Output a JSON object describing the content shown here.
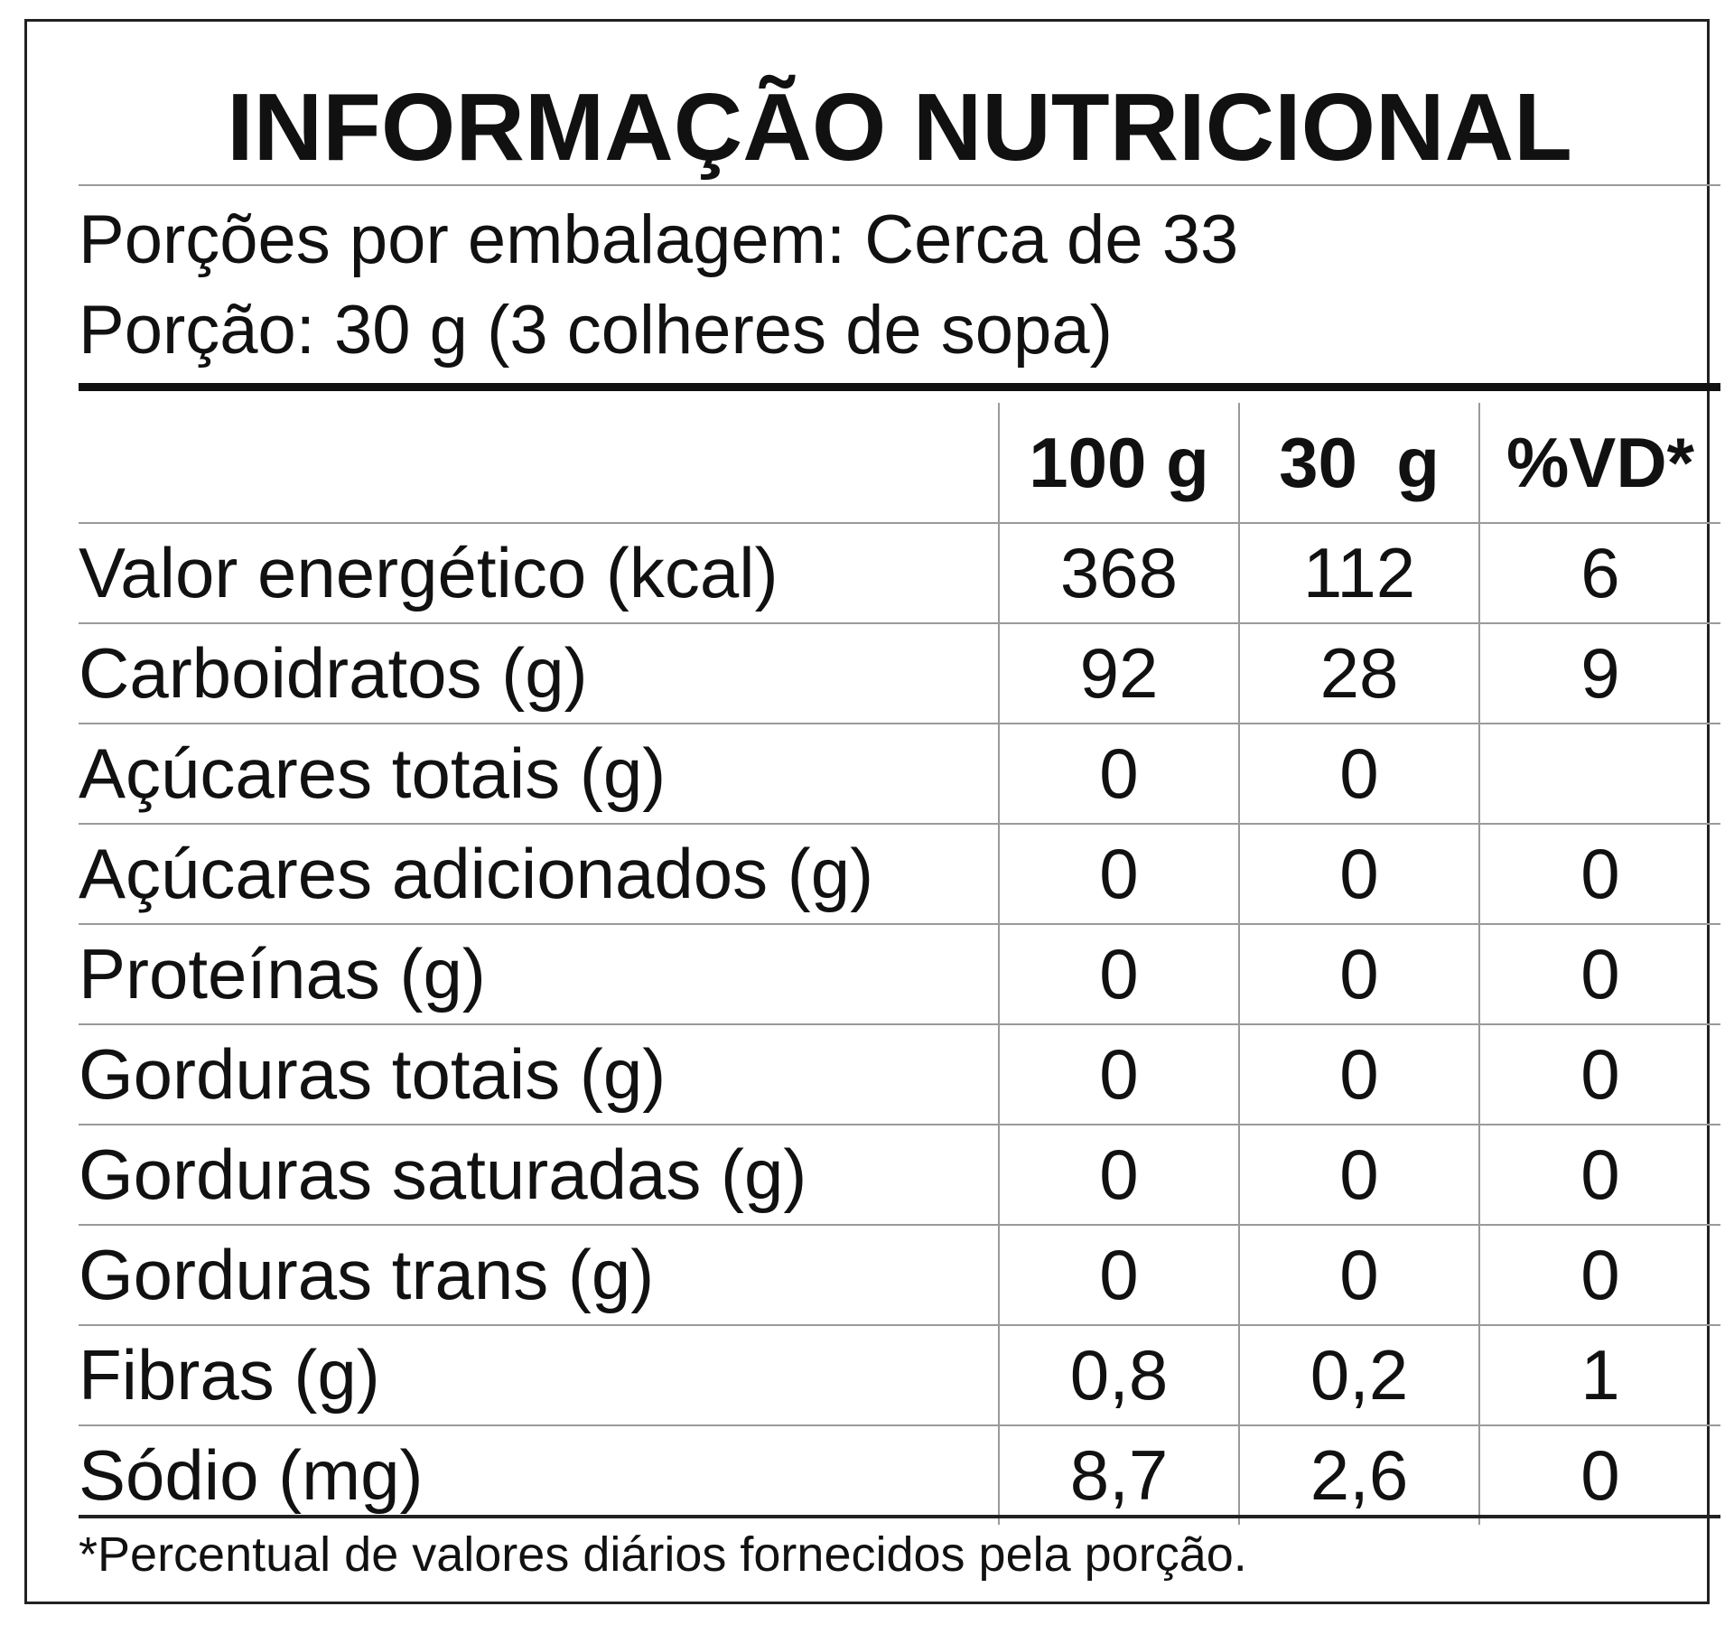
{
  "title": "INFORMAÇÃO NUTRICIONAL",
  "servings_per_package": "Porções por embalagem: Cerca de 33",
  "serving_size": "Porção: 30 g (3 colheres de sopa)",
  "columns": [
    "100 g",
    "30  g",
    "%VD*"
  ],
  "rows": [
    {
      "name": "Valor energético (kcal)",
      "indent": 0,
      "v100": "368",
      "v30": "112",
      "vd": "6"
    },
    {
      "name": "Carboidratos (g)",
      "indent": 0,
      "v100": "92",
      "v30": "28",
      "vd": "9"
    },
    {
      "name": "Açúcares totais (g)",
      "indent": 1,
      "v100": "0",
      "v30": "0",
      "vd": ""
    },
    {
      "name": "Açúcares adicionados (g)",
      "indent": 2,
      "v100": "0",
      "v30": "0",
      "vd": "0"
    },
    {
      "name": "Proteínas (g)",
      "indent": 0,
      "v100": "0",
      "v30": "0",
      "vd": "0"
    },
    {
      "name": "Gorduras totais (g)",
      "indent": 0,
      "v100": "0",
      "v30": "0",
      "vd": "0"
    },
    {
      "name": "Gorduras saturadas (g)",
      "indent": 1,
      "v100": "0",
      "v30": "0",
      "vd": "0"
    },
    {
      "name": "Gorduras trans (g)",
      "indent": 1,
      "v100": "0",
      "v30": "0",
      "vd": "0"
    },
    {
      "name": "Fibras (g)",
      "indent": 0,
      "v100": "0,8",
      "v30": "0,2",
      "vd": "1"
    },
    {
      "name": "Sódio (mg)",
      "indent": 0,
      "v100": "8,7",
      "v30": "2,6",
      "vd": "0"
    }
  ],
  "footnote": "*Percentual de valores diários fornecidos pela porção."
}
